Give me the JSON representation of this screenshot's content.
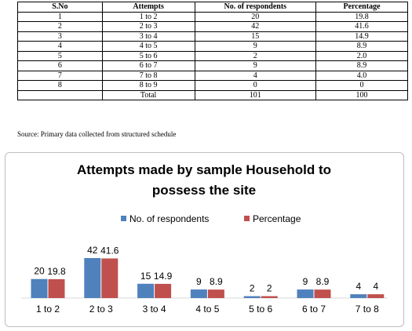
{
  "table": {
    "headers": [
      "S.No",
      "Attempts",
      "No. of respondents",
      "Percentage"
    ],
    "rows": [
      [
        "1",
        "1 to 2",
        "20",
        "19.8"
      ],
      [
        "2",
        "2 to 3",
        "42",
        "41.6"
      ],
      [
        "3",
        "3 to 4",
        "15",
        "14.9"
      ],
      [
        "4",
        "4 to 5",
        "9",
        "8.9"
      ],
      [
        "5",
        "5 to 6",
        "2",
        "2.0"
      ],
      [
        "6",
        "6 to 7",
        "9",
        "8.9"
      ],
      [
        "7",
        "7 to 8",
        "4",
        "4.0"
      ],
      [
        "8",
        "8 to 9",
        "0",
        "0"
      ],
      [
        "",
        "Total",
        "101",
        "100"
      ]
    ]
  },
  "source_note": "Source: Primary data collected from structured schedule",
  "chart_data": {
    "type": "bar",
    "title_lines": [
      "Attempts made by sample Household to",
      "possess the site"
    ],
    "categories": [
      "1 to 2",
      "2 to 3",
      "3 to 4",
      "4 to 5",
      "5 to 6",
      "6 to 7",
      "7 to 8"
    ],
    "series": [
      {
        "name": "No. of respondents",
        "color": "#4f81bd",
        "values": [
          20,
          42,
          15,
          9,
          2,
          9,
          4
        ],
        "labels": [
          "20",
          "42",
          "15",
          "9",
          "2",
          "9",
          "4"
        ]
      },
      {
        "name": "Percentage",
        "color": "#c0504d",
        "values": [
          19.8,
          41.6,
          14.9,
          8.9,
          2,
          8.9,
          4
        ],
        "labels": [
          "19.8",
          "41.6",
          "14.9",
          "8.9",
          "2",
          "8.9",
          "4"
        ]
      }
    ],
    "legend": "top",
    "grid": false,
    "ylim": [
      0,
      42
    ]
  }
}
